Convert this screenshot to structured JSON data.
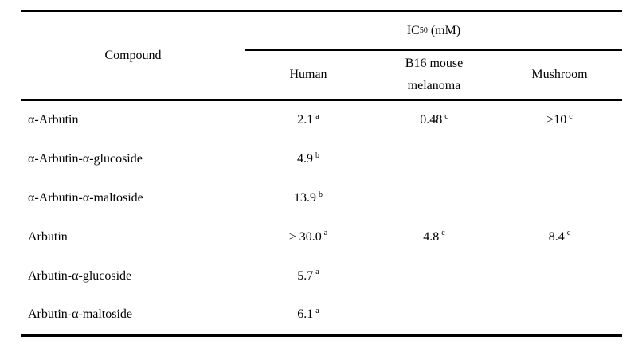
{
  "table": {
    "header": {
      "compound_label": "Compound",
      "group": {
        "prefix": "IC",
        "sub": "50",
        "suffix": " (mM)"
      },
      "columns": [
        "Human",
        "B16 mouse melanoma",
        "Mushroom"
      ]
    },
    "rows": [
      {
        "compound": "α-Arbutin",
        "human": {
          "v": "2.1",
          "s": "a"
        },
        "b16": {
          "v": "0.48",
          "s": "c"
        },
        "mushroom": {
          "v": ">10",
          "s": "c"
        }
      },
      {
        "compound": "α-Arbutin-α-glucoside",
        "human": {
          "v": "4.9",
          "s": "b"
        }
      },
      {
        "compound": "α-Arbutin-α-maltoside",
        "human": {
          "v": "13.9",
          "s": "b"
        }
      },
      {
        "compound": "Arbutin",
        "human": {
          "v": "> 30.0",
          "s": "a"
        },
        "b16": {
          "v": "4.8",
          "s": "c"
        },
        "mushroom": {
          "v": "8.4",
          "s": "c"
        }
      },
      {
        "compound": "Arbutin-α-glucoside",
        "human": {
          "v": "5.7",
          "s": "a"
        }
      },
      {
        "compound": "Arbutin-α-maltoside",
        "human": {
          "v": "6.1",
          "s": "a"
        }
      }
    ]
  },
  "colors": {
    "text": "#000000",
    "rule": "#000000",
    "background": "#ffffff"
  }
}
